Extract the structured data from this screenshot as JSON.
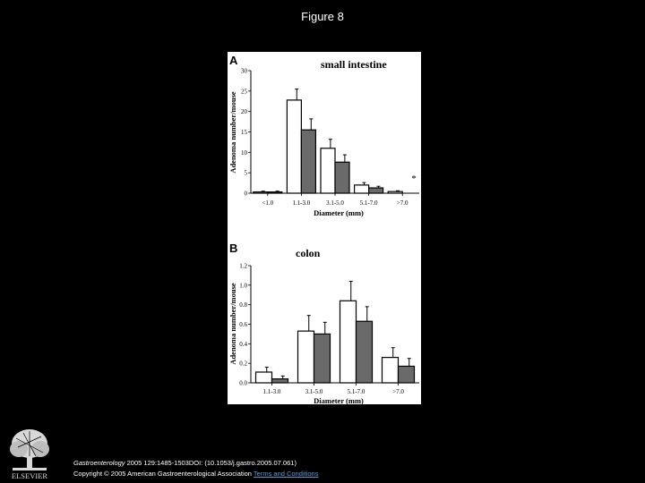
{
  "title": "Figure 8",
  "chart_data": [
    {
      "type": "bar",
      "panel_label": "A",
      "title": "small intestine",
      "xlabel": "Diameter (mm)",
      "ylabel": "Adenoma number/mouse",
      "categories": [
        "<1.0",
        "1.1-3.0",
        "3.1-5.0",
        "5.1-7.0",
        ">7.0"
      ],
      "ylim": [
        0,
        30
      ],
      "yticks": [
        "0",
        "5",
        "10",
        "15",
        "20",
        "25",
        "30"
      ],
      "series": [
        {
          "values": [
            0.3,
            22.8,
            11.0,
            2.0,
            0.4
          ],
          "errors": [
            0.2,
            2.7,
            2.2,
            0.6,
            0.2
          ],
          "color": "#ffffff"
        },
        {
          "values": [
            0.3,
            15.5,
            7.6,
            1.3,
            0.0
          ],
          "errors": [
            0.2,
            2.7,
            1.8,
            0.4,
            0.0
          ],
          "color": "#6a6a6a"
        }
      ],
      "annotations": [
        {
          "text": "*",
          "category": ">7.0"
        }
      ]
    },
    {
      "type": "bar",
      "panel_label": "B",
      "title": "colon",
      "xlabel": "Diameter (mm)",
      "ylabel": "Adenoma number/mouse",
      "categories": [
        "1.1-3.0",
        "3.1-5.0",
        "5.1-7.0",
        ">7.0"
      ],
      "ylim": [
        0,
        1.2
      ],
      "yticks": [
        "0.0",
        "0.2",
        "0.4",
        "0.6",
        "0.8",
        "1.0",
        "1.2"
      ],
      "series": [
        {
          "values": [
            0.11,
            0.53,
            0.84,
            0.26
          ],
          "errors": [
            0.05,
            0.16,
            0.2,
            0.1
          ],
          "color": "#ffffff"
        },
        {
          "values": [
            0.04,
            0.5,
            0.63,
            0.17
          ],
          "errors": [
            0.03,
            0.12,
            0.15,
            0.08
          ],
          "color": "#6a6a6a"
        }
      ]
    }
  ],
  "footer": {
    "citation_line1": "Gastroenterology 2005 129:1485-1503DOI: (10.1053/j.gastro.2005.07.061)",
    "journal": "Gastroenterology",
    "citation_rest": " 2005 129:1485-1503DOI: (10.1053/j.gastro.2005.07.061)",
    "copyright": "Copyright © 2005 American Gastroenterological Association ",
    "terms_link": "Terms and Conditions",
    "publisher_logo_text": "ELSEVIER"
  }
}
